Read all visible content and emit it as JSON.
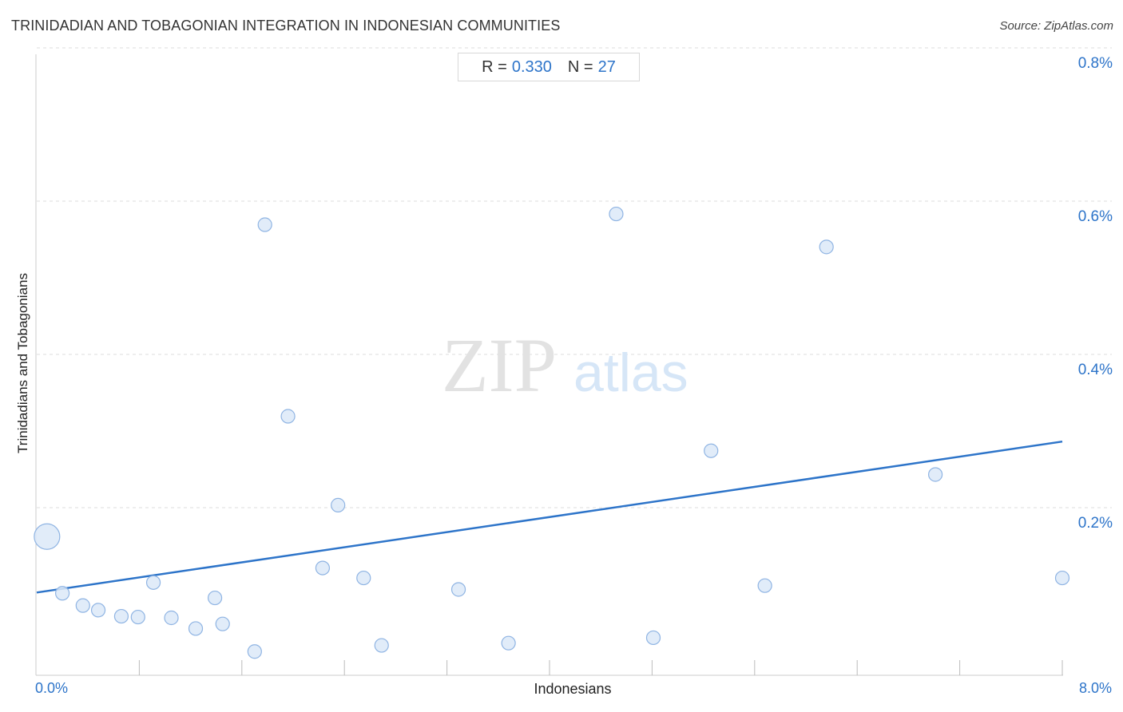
{
  "title": "TRINIDADIAN AND TOBAGONIAN INTEGRATION IN INDONESIAN COMMUNITIES",
  "source": "Source: ZipAtlas.com",
  "stats": {
    "r_label": "R =",
    "r_value": "0.330",
    "n_label": "N =",
    "n_value": "27"
  },
  "watermark": {
    "zip": "ZIP",
    "atlas": "atlas"
  },
  "colors": {
    "accent": "#2d74c9",
    "point_fill": "#dce9f8",
    "point_stroke": "#8fb4e3",
    "grid": "#dddddd"
  },
  "chart_data": {
    "type": "scatter",
    "title": "TRINIDADIAN AND TOBAGONIAN INTEGRATION IN INDONESIAN COMMUNITIES",
    "xlabel": "Indonesians",
    "ylabel": "Trinidadians and Tobagonians",
    "xlim": [
      0,
      8
    ],
    "ylim": [
      0,
      0.8
    ],
    "x_unit": "%",
    "y_unit": "%",
    "x_tick_labels": [
      "0.0%",
      "8.0%"
    ],
    "y_ticks": [
      0.2,
      0.4,
      0.6,
      0.8
    ],
    "y_tick_labels": [
      "0.2%",
      "0.4%",
      "0.6%",
      "0.8%"
    ],
    "grid": "horizontal dashed",
    "points": [
      {
        "x": 0.08,
        "y": 0.181,
        "size": "large"
      },
      {
        "x": 0.2,
        "y": 0.107
      },
      {
        "x": 0.36,
        "y": 0.091
      },
      {
        "x": 0.48,
        "y": 0.085
      },
      {
        "x": 0.66,
        "y": 0.077
      },
      {
        "x": 0.79,
        "y": 0.076
      },
      {
        "x": 0.91,
        "y": 0.121
      },
      {
        "x": 1.05,
        "y": 0.075
      },
      {
        "x": 1.24,
        "y": 0.061
      },
      {
        "x": 1.39,
        "y": 0.101
      },
      {
        "x": 1.45,
        "y": 0.067
      },
      {
        "x": 1.7,
        "y": 0.031
      },
      {
        "x": 1.78,
        "y": 0.588
      },
      {
        "x": 1.96,
        "y": 0.338
      },
      {
        "x": 2.23,
        "y": 0.14
      },
      {
        "x": 2.35,
        "y": 0.222
      },
      {
        "x": 2.55,
        "y": 0.127
      },
      {
        "x": 2.69,
        "y": 0.039
      },
      {
        "x": 3.29,
        "y": 0.112
      },
      {
        "x": 3.68,
        "y": 0.042
      },
      {
        "x": 4.52,
        "y": 0.602
      },
      {
        "x": 4.81,
        "y": 0.049
      },
      {
        "x": 5.26,
        "y": 0.293
      },
      {
        "x": 5.68,
        "y": 0.117
      },
      {
        "x": 6.16,
        "y": 0.559
      },
      {
        "x": 7.01,
        "y": 0.262
      },
      {
        "x": 8.0,
        "y": 0.127
      }
    ],
    "trendline": {
      "x": [
        0,
        8
      ],
      "y": [
        0.108,
        0.305
      ]
    }
  }
}
